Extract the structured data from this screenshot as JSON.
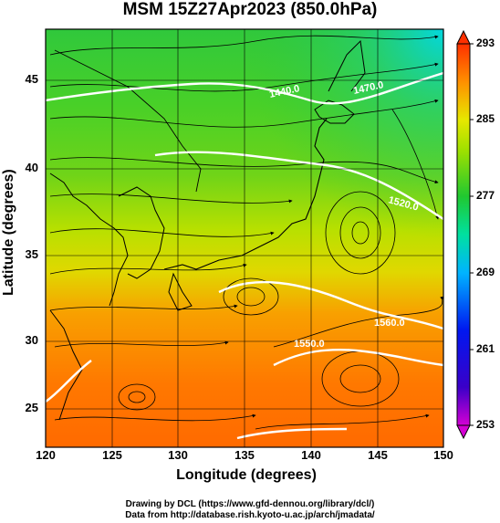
{
  "title": "MSM 15Z27Apr2023 (850.0hPa)",
  "axes": {
    "xlabel": "Longitude (degrees)",
    "ylabel": "Latitude  (degrees)",
    "xticks": [
      "120",
      "125",
      "130",
      "135",
      "140",
      "145",
      "150"
    ],
    "yticks": [
      "45",
      "40",
      "35",
      "30",
      "25"
    ]
  },
  "colorbar": {
    "ticks": [
      "293",
      "285",
      "277",
      "269",
      "261",
      "253"
    ],
    "min": 253,
    "max": 293
  },
  "contour_labels": [
    "1440.0",
    "1470.0",
    "1520.0",
    "1550.0",
    "1560.0"
  ],
  "footer": {
    "line1": "Drawing by DCL (https://www.gfd-dennou.org/library/dcl/)",
    "line2": "Data from http://database.rish.kyoto-u.ac.jp/arch/jmadata/"
  }
}
